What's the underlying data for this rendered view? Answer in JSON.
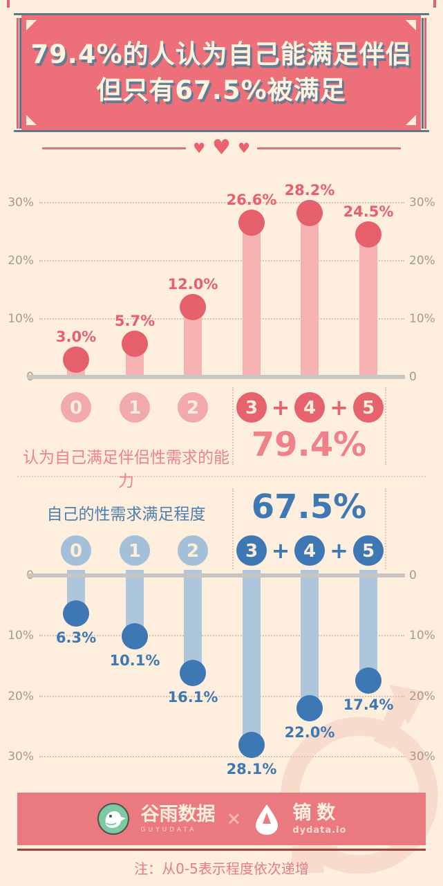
{
  "title": {
    "line1": "79.4%的人认为自己能满足伴侣",
    "line2": "但只有67.5%被满足"
  },
  "summary_pink": {
    "label": "认为自己满足伴侣性需求的能力",
    "value": "79.4%"
  },
  "summary_blue": {
    "label": "自己的性需求满足程度",
    "value": "67.5%"
  },
  "note": "注：从0-5表示程度依次递增",
  "footer": {
    "logo1_name": "谷雨数据",
    "logo1_sub": "GUYUDATA",
    "separator": "×",
    "logo2_name": "镝数",
    "logo2_sub": "dydata.io"
  },
  "colors": {
    "background": "#fdeedd",
    "banner_pink": "#ed6f7a",
    "banner_shadow_blue": "#5d7788",
    "pink_dark": "#e5606b",
    "pink_light": "#f6b2b0",
    "pink_text": "#ef8289",
    "blue_dark": "#3d77b4",
    "blue_light": "#adc6db",
    "axis_text": "#a89a8b",
    "baseline_gray": "#c7c6c2",
    "footer_red_line": "#a93e38",
    "watermark_pink": "#f8dbcb"
  },
  "chart_data": [
    {
      "type": "bar",
      "variant": "lollipop",
      "orientation": "up",
      "title": "认为自己满足伴侣性需求的能力",
      "categories": [
        "0",
        "1",
        "2",
        "3",
        "4",
        "5"
      ],
      "values": [
        3.0,
        5.7,
        12.0,
        26.6,
        28.2,
        24.5
      ],
      "labels": [
        "3.0%",
        "5.7%",
        "12.0%",
        "26.6%",
        "28.2%",
        "24.5%"
      ],
      "highlight_group": {
        "categories": [
          "3",
          "4",
          "5"
        ],
        "total": "79.4%"
      },
      "ticks": [
        {
          "v": 0,
          "label": "0"
        },
        {
          "v": 10,
          "label": "10%"
        },
        {
          "v": 20,
          "label": "20%"
        },
        {
          "v": 30,
          "label": "30%"
        }
      ],
      "ylim": [
        0,
        30
      ],
      "grid": true,
      "axis_sides": "both",
      "bar_color": "#f6b2b0",
      "dot_color": "#e5606b",
      "label_color": "#e8606c",
      "cat_light": "#f2a9ac",
      "cat_dark": "#e6636d"
    },
    {
      "type": "bar",
      "variant": "lollipop",
      "orientation": "down",
      "title": "自己的性需求满足程度",
      "categories": [
        "0",
        "1",
        "2",
        "3",
        "4",
        "5"
      ],
      "values": [
        6.3,
        10.1,
        16.1,
        28.1,
        22.0,
        17.4
      ],
      "labels": [
        "6.3%",
        "10.1%",
        "16.1%",
        "28.1%",
        "22.0%",
        "17.4%"
      ],
      "highlight_group": {
        "categories": [
          "3",
          "4",
          "5"
        ],
        "total": "67.5%"
      },
      "ticks": [
        {
          "v": 0,
          "label": "0"
        },
        {
          "v": 10,
          "label": "10%"
        },
        {
          "v": 20,
          "label": "20%"
        },
        {
          "v": 30,
          "label": "30%"
        }
      ],
      "ylim": [
        0,
        30
      ],
      "grid": true,
      "axis_sides": "both",
      "bar_color": "#adc6db",
      "dot_color": "#3d77b4",
      "label_color": "#3d77b4",
      "cat_light": "#a4bfd8",
      "cat_dark": "#3d77b4"
    }
  ]
}
